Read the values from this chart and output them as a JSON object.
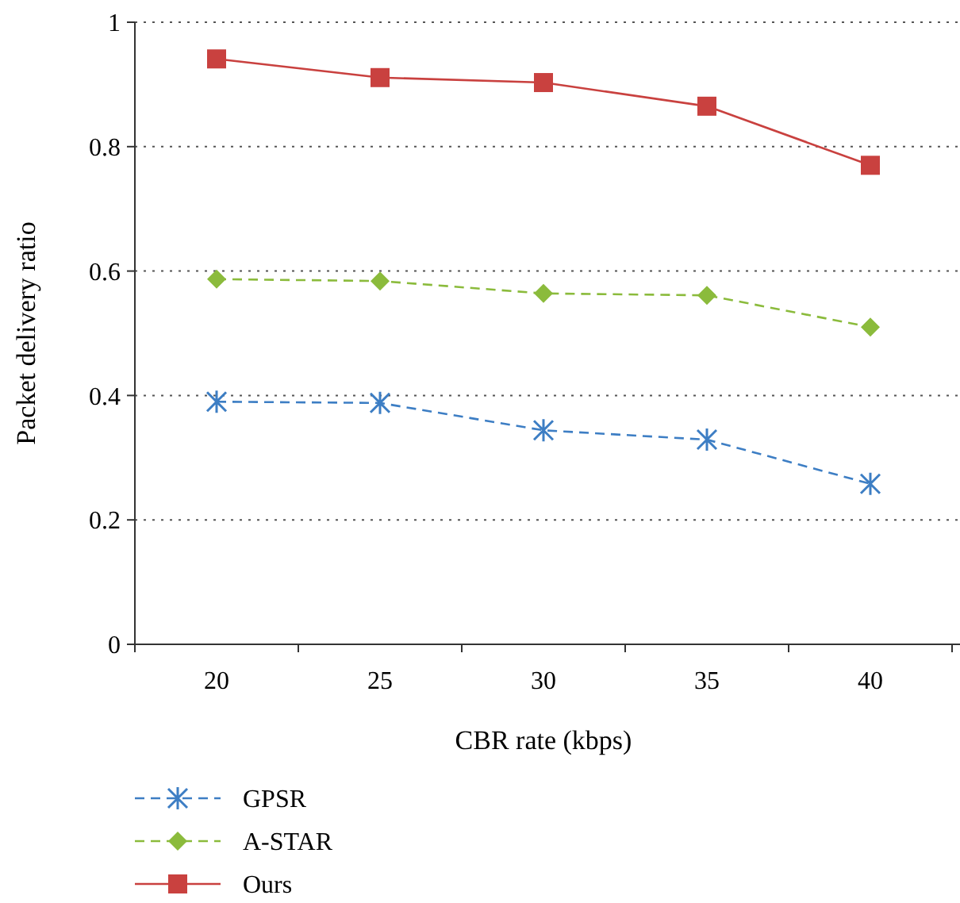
{
  "chart_data": {
    "type": "line",
    "xlabel": "CBR rate (kbps)",
    "ylabel": "Packet delivery ratio",
    "categories": [
      "20",
      "25",
      "30",
      "35",
      "40"
    ],
    "ylim": [
      0,
      1
    ],
    "yticks": [
      0,
      0.2,
      0.4,
      0.6,
      0.8,
      1
    ],
    "grid": "y",
    "legend": "bottom",
    "series": [
      {
        "name": "GPSR",
        "color": "#3d7ec4",
        "values": [
          0.39,
          0.388,
          0.344,
          0.329,
          0.258
        ],
        "marker": "cross",
        "line_style": "dashed"
      },
      {
        "name": "A-STAR",
        "color": "#8bbb3c",
        "values": [
          0.587,
          0.584,
          0.564,
          0.561,
          0.51
        ],
        "marker": "diamond",
        "line_style": "dashed"
      },
      {
        "name": "Ours",
        "color": "#c9413f",
        "values": [
          0.941,
          0.911,
          0.903,
          0.865,
          0.77
        ],
        "marker": "square",
        "line_style": "solid"
      }
    ]
  }
}
